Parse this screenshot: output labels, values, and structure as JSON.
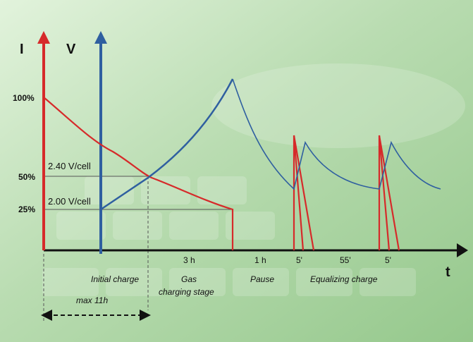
{
  "colors": {
    "current": "#d62a2a",
    "voltage": "#2f5fa0",
    "axis": "#111111",
    "guide": "#555555",
    "background_light": "#d9efd3",
    "background_dark": "#8cc184"
  },
  "axes": {
    "current_label": "I",
    "voltage_label": "V",
    "time_label": "t"
  },
  "current_levels": [
    "100%",
    "50%",
    "25%"
  ],
  "voltage_levels": [
    "2.40 V/cell",
    "2.00 V/cell"
  ],
  "durations": [
    "3 h",
    "1 h",
    "5'",
    "55'",
    "5'"
  ],
  "stages": [
    "Initial charge",
    "Gas charging stage",
    "Pause",
    "Equalizing charge"
  ],
  "max_time": "max 11h"
}
